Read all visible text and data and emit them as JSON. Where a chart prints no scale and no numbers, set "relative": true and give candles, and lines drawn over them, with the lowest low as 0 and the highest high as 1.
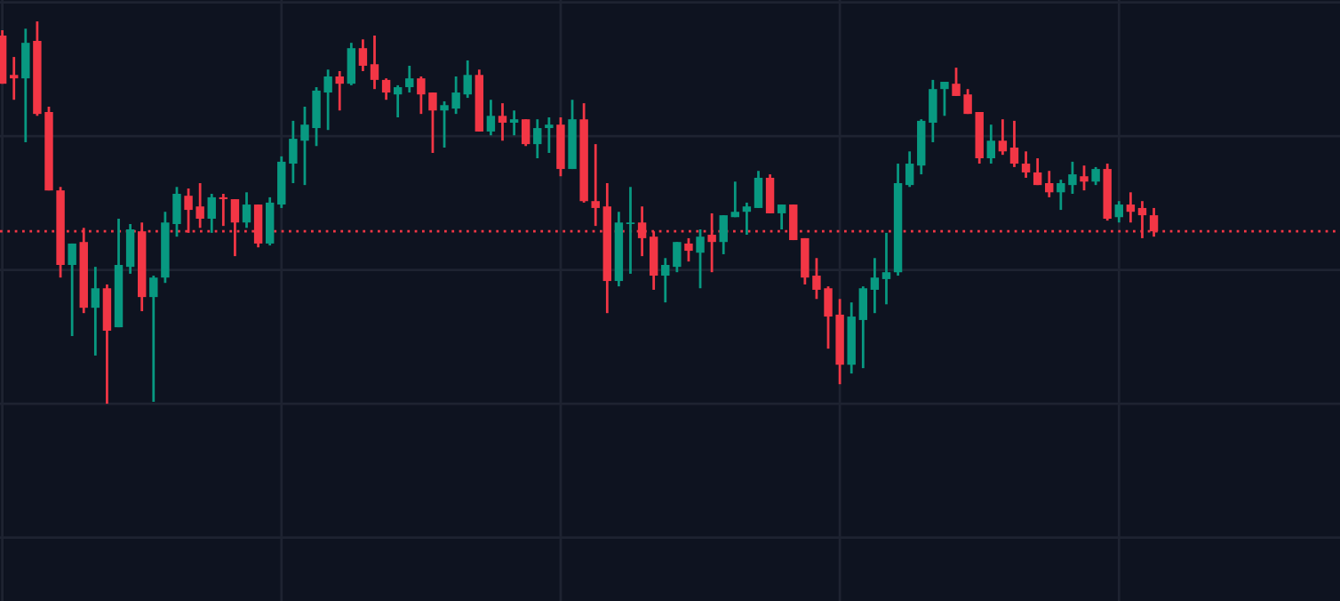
{
  "chart_data": {
    "type": "candlestick",
    "relative": true,
    "grid": true,
    "categories": [
      null,
      null,
      null,
      null,
      null,
      null,
      null,
      null,
      null,
      null,
      null,
      null,
      null,
      null,
      null,
      null,
      null,
      null,
      null,
      null,
      null,
      null,
      null,
      null,
      null,
      null,
      null,
      null,
      null,
      null,
      null,
      null,
      null,
      null,
      null,
      null,
      null,
      null,
      null,
      null,
      null,
      null,
      null,
      null,
      null,
      null,
      null,
      null,
      null,
      null,
      null,
      null,
      null,
      null,
      null,
      null,
      null,
      null,
      null,
      null,
      null,
      null,
      null,
      null,
      null,
      null,
      null,
      null,
      null,
      null,
      null,
      null,
      null,
      null,
      null,
      null,
      null,
      null,
      null,
      null,
      null,
      null,
      null,
      null,
      null,
      null,
      null,
      null,
      null,
      null,
      null,
      null,
      null,
      null,
      null,
      null,
      null,
      null,
      null,
      null
    ],
    "ohlc": [
      [
        0.963,
        0.977,
        0.837,
        0.837
      ],
      [
        0.86,
        0.907,
        0.795,
        0.851
      ],
      [
        0.851,
        0.981,
        0.684,
        0.944
      ],
      [
        0.949,
        1,
        0.753,
        0.758
      ],
      [
        0.763,
        0.777,
        0.558,
        0.558
      ],
      [
        0.558,
        0.567,
        0.33,
        0.363
      ],
      [
        0.363,
        0.419,
        0.177,
        0.419
      ],
      [
        0.423,
        0.46,
        0.237,
        0.251
      ],
      [
        0.251,
        0.358,
        0.126,
        0.302
      ],
      [
        0.302,
        0.312,
        0,
        0.191
      ],
      [
        0.2,
        0.484,
        0.2,
        0.363
      ],
      [
        0.358,
        0.47,
        0.34,
        0.456
      ],
      [
        0.451,
        0.474,
        0.242,
        0.279
      ],
      [
        0.279,
        0.335,
        0.005,
        0.33
      ],
      [
        0.33,
        0.502,
        0.316,
        0.474
      ],
      [
        0.47,
        0.567,
        0.437,
        0.549
      ],
      [
        0.544,
        0.563,
        0.447,
        0.507
      ],
      [
        0.516,
        0.577,
        0.46,
        0.484
      ],
      [
        0.484,
        0.549,
        0.447,
        0.54
      ],
      [
        0.54,
        0.549,
        0.465,
        0.535
      ],
      [
        0.535,
        0.535,
        0.386,
        0.474
      ],
      [
        0.474,
        0.553,
        0.46,
        0.521
      ],
      [
        0.521,
        0.521,
        0.409,
        0.419
      ],
      [
        0.419,
        0.54,
        0.414,
        0.526
      ],
      [
        0.521,
        0.647,
        0.512,
        0.633
      ],
      [
        0.628,
        0.74,
        0.577,
        0.693
      ],
      [
        0.688,
        0.777,
        0.572,
        0.73
      ],
      [
        0.721,
        0.828,
        0.674,
        0.819
      ],
      [
        0.814,
        0.874,
        0.716,
        0.856
      ],
      [
        0.856,
        0.87,
        0.767,
        0.837
      ],
      [
        0.837,
        0.944,
        0.833,
        0.93
      ],
      [
        0.93,
        0.953,
        0.87,
        0.884
      ],
      [
        0.888,
        0.963,
        0.823,
        0.847
      ],
      [
        0.847,
        0.851,
        0.795,
        0.814
      ],
      [
        0.809,
        0.833,
        0.749,
        0.828
      ],
      [
        0.828,
        0.884,
        0.814,
        0.851
      ],
      [
        0.851,
        0.856,
        0.758,
        0.809
      ],
      [
        0.814,
        0.814,
        0.656,
        0.767
      ],
      [
        0.767,
        0.791,
        0.67,
        0.781
      ],
      [
        0.772,
        0.856,
        0.758,
        0.814
      ],
      [
        0.809,
        0.898,
        0.8,
        0.86
      ],
      [
        0.86,
        0.874,
        0.712,
        0.712
      ],
      [
        0.712,
        0.795,
        0.702,
        0.753
      ],
      [
        0.753,
        0.786,
        0.688,
        0.735
      ],
      [
        0.735,
        0.767,
        0.702,
        0.744
      ],
      [
        0.744,
        0.744,
        0.674,
        0.679
      ],
      [
        0.679,
        0.744,
        0.642,
        0.721
      ],
      [
        0.721,
        0.749,
        0.656,
        0.73
      ],
      [
        0.73,
        0.749,
        0.595,
        0.614
      ],
      [
        0.614,
        0.795,
        0.614,
        0.744
      ],
      [
        0.744,
        0.786,
        0.526,
        0.53
      ],
      [
        0.53,
        0.679,
        0.465,
        0.512
      ],
      [
        0.516,
        0.577,
        0.237,
        0.321
      ],
      [
        0.321,
        0.502,
        0.307,
        0.474
      ],
      [
        0.47,
        0.567,
        0.34,
        0.474
      ],
      [
        0.474,
        0.516,
        0.386,
        0.433
      ],
      [
        0.437,
        0.451,
        0.298,
        0.335
      ],
      [
        0.335,
        0.381,
        0.265,
        0.363
      ],
      [
        0.358,
        0.423,
        0.344,
        0.423
      ],
      [
        0.419,
        0.433,
        0.372,
        0.4
      ],
      [
        0.395,
        0.456,
        0.302,
        0.437
      ],
      [
        0.442,
        0.498,
        0.344,
        0.423
      ],
      [
        0.423,
        0.493,
        0.391,
        0.493
      ],
      [
        0.488,
        0.581,
        0.488,
        0.502
      ],
      [
        0.502,
        0.526,
        0.442,
        0.516
      ],
      [
        0.512,
        0.609,
        0.512,
        0.591
      ],
      [
        0.591,
        0.6,
        0.498,
        0.498
      ],
      [
        0.498,
        0.521,
        0.456,
        0.521
      ],
      [
        0.521,
        0.521,
        0.428,
        0.428
      ],
      [
        0.433,
        0.433,
        0.312,
        0.33
      ],
      [
        0.335,
        0.381,
        0.274,
        0.298
      ],
      [
        0.302,
        0.307,
        0.144,
        0.228
      ],
      [
        0.233,
        0.274,
        0.051,
        0.102
      ],
      [
        0.102,
        0.265,
        0.079,
        0.228
      ],
      [
        0.219,
        0.307,
        0.093,
        0.302
      ],
      [
        0.298,
        0.381,
        0.237,
        0.33
      ],
      [
        0.326,
        0.447,
        0.26,
        0.344
      ],
      [
        0.344,
        0.628,
        0.335,
        0.577
      ],
      [
        0.572,
        0.66,
        0.567,
        0.628
      ],
      [
        0.623,
        0.744,
        0.6,
        0.74
      ],
      [
        0.735,
        0.847,
        0.684,
        0.823
      ],
      [
        0.823,
        0.842,
        0.753,
        0.842
      ],
      [
        0.837,
        0.879,
        0.805,
        0.805
      ],
      [
        0.809,
        0.823,
        0.758,
        0.758
      ],
      [
        0.763,
        0.763,
        0.628,
        0.642
      ],
      [
        0.642,
        0.73,
        0.628,
        0.688
      ],
      [
        0.688,
        0.744,
        0.651,
        0.66
      ],
      [
        0.67,
        0.74,
        0.619,
        0.628
      ],
      [
        0.628,
        0.66,
        0.591,
        0.605
      ],
      [
        0.605,
        0.642,
        0.572,
        0.572
      ],
      [
        0.577,
        0.609,
        0.54,
        0.553
      ],
      [
        0.553,
        0.586,
        0.507,
        0.577
      ],
      [
        0.572,
        0.633,
        0.549,
        0.6
      ],
      [
        0.595,
        0.623,
        0.558,
        0.581
      ],
      [
        0.581,
        0.619,
        0.572,
        0.614
      ],
      [
        0.614,
        0.628,
        0.479,
        0.484
      ],
      [
        0.488,
        0.53,
        0.474,
        0.521
      ],
      [
        0.521,
        0.553,
        0.474,
        0.502
      ],
      [
        0.512,
        0.53,
        0.433,
        0.493
      ],
      [
        0.493,
        0.512,
        0.437,
        0.451
      ]
    ],
    "ref_lines": [
      {
        "axis": "y",
        "value": 0.451,
        "color": "#f23645",
        "line_style": "dotted"
      }
    ]
  }
}
